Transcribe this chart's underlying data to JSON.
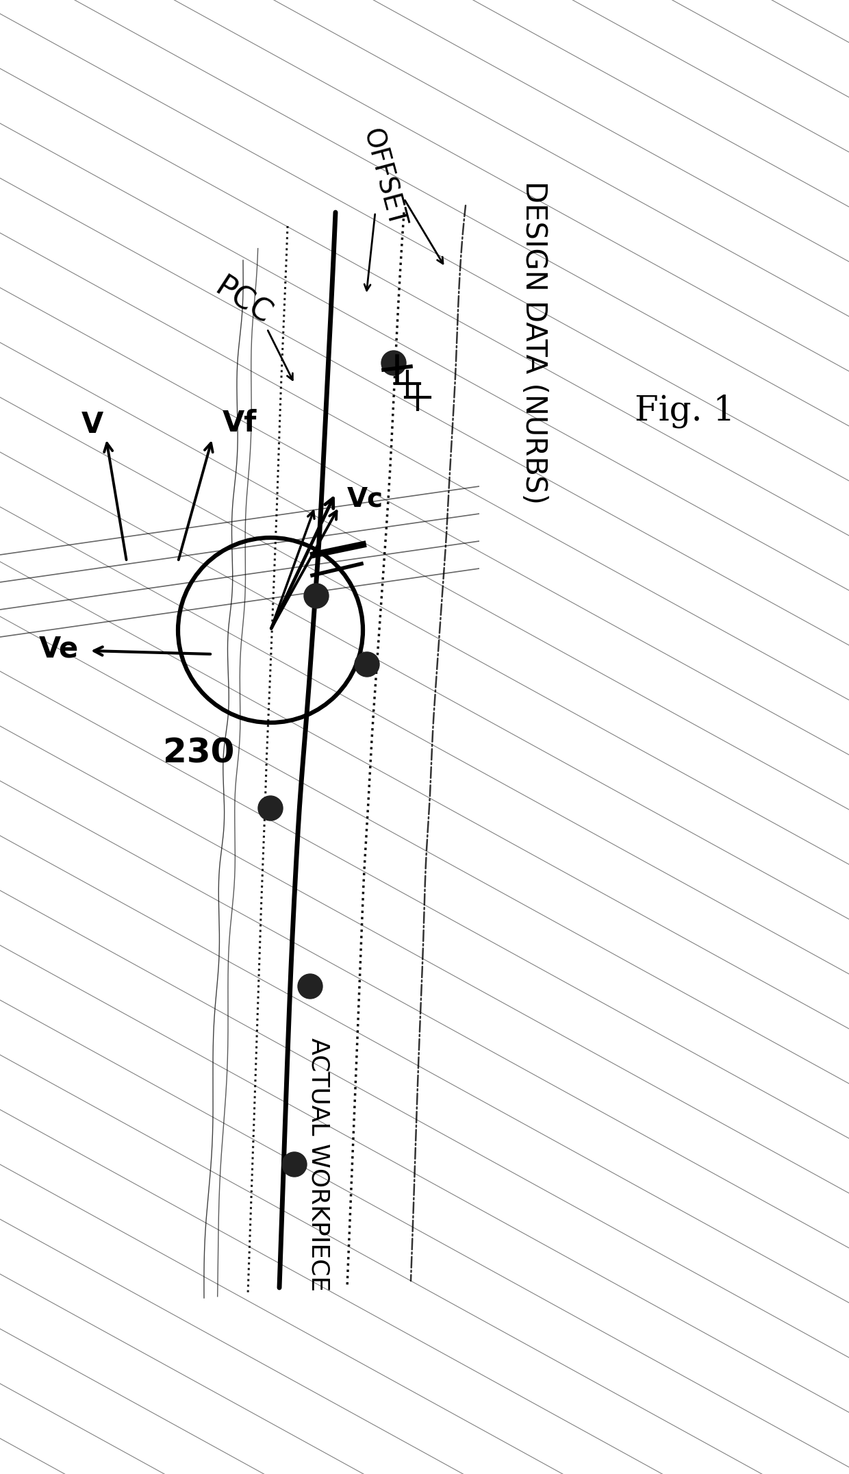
{
  "fig_label": "Fig. 1",
  "bg_color": "#ffffff",
  "design_data_label": "DESIGN DATA (NURBS)",
  "offset_label": "OFFSET",
  "pcc_label": "PCC",
  "actual_workpiece_label": "ACTUAL WORKPIECE",
  "label_230": "230",
  "v_label": "V",
  "vf_label": "Vf",
  "ve_label": "Ve",
  "vc_label": "Vc",
  "fig_w": 1240,
  "fig_h": 2152
}
